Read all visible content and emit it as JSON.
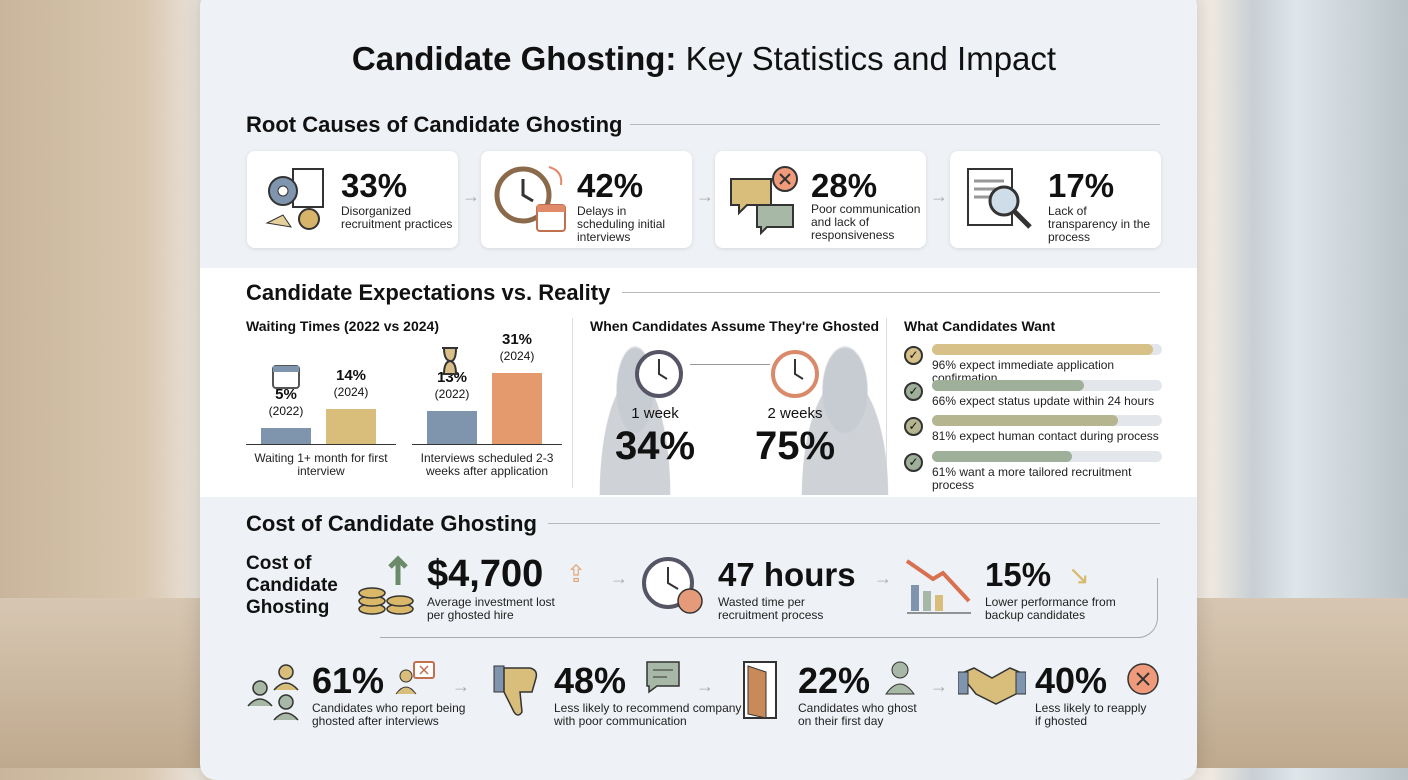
{
  "title": {
    "bold": "Candidate Ghosting:",
    "rest": " Key Statistics and Impact"
  },
  "root": {
    "heading": "Root Causes of Candidate Ghosting",
    "items": [
      {
        "value": "33%",
        "label": "Disorganized recruitment practices",
        "icon": "gears-document-icon"
      },
      {
        "value": "42%",
        "label": "Delays in scheduling initial interviews",
        "icon": "clock-calendar-icon"
      },
      {
        "value": "28%",
        "label": "Poor communication and lack of responsiveness",
        "icon": "broken-chat-icon"
      },
      {
        "value": "17%",
        "label": "Lack of transparency in the process",
        "icon": "document-magnifier-icon"
      }
    ]
  },
  "expect": {
    "heading": "Candidate Expectations vs. Reality",
    "waiting": {
      "title": "Waiting Times (2022 vs 2024)",
      "charts": [
        {
          "v2022": "5%",
          "y2022": "(2022)",
          "v2024": "14%",
          "y2024": "(2024)",
          "values": [
            5,
            14
          ],
          "label": "Waiting 1+ month for first interview"
        },
        {
          "v2022": "13%",
          "y2022": "(2022)",
          "v2024": "31%",
          "y2024": "(2024)",
          "values": [
            13,
            31
          ],
          "label": "Interviews scheduled 2-3 weeks after application"
        }
      ]
    },
    "assume": {
      "title": "When Candidates Assume They're Ghosted",
      "a": {
        "period": "1 week",
        "value": "34%"
      },
      "b": {
        "period": "2 weeks",
        "value": "75%"
      }
    },
    "want": {
      "title": "What Candidates Want",
      "items": [
        {
          "pct": 96,
          "text": "96% expect immediate application confirmation",
          "color": "#d8c089"
        },
        {
          "pct": 66,
          "text": "66% expect status update within 24 hours",
          "color": "#9fb09a"
        },
        {
          "pct": 81,
          "text": "81% expect human contact during process",
          "color": "#b5b58f"
        },
        {
          "pct": 61,
          "text": "61% want a more tailored recruitment process",
          "color": "#9fb09a"
        }
      ]
    }
  },
  "cost": {
    "heading": "Cost of Candidate Ghosting",
    "side_label": "Cost of Candidate Ghosting",
    "row1": [
      {
        "value": "$4,700",
        "label": "Average investment lost per ghosted hire"
      },
      {
        "value": "47 hours",
        "label": "Wasted time per recruitment process"
      },
      {
        "value": "15%",
        "label": "Lower performance from backup candidates"
      }
    ],
    "row2": [
      {
        "value": "61%",
        "label": "Candidates who report being ghosted after interviews"
      },
      {
        "value": "48%",
        "label": "Less likely to recommend company with poor communication"
      },
      {
        "value": "22%",
        "label": "Candidates who ghost on their first day"
      },
      {
        "value": "40%",
        "label": "Less likely to reapply if ghosted"
      }
    ]
  }
}
